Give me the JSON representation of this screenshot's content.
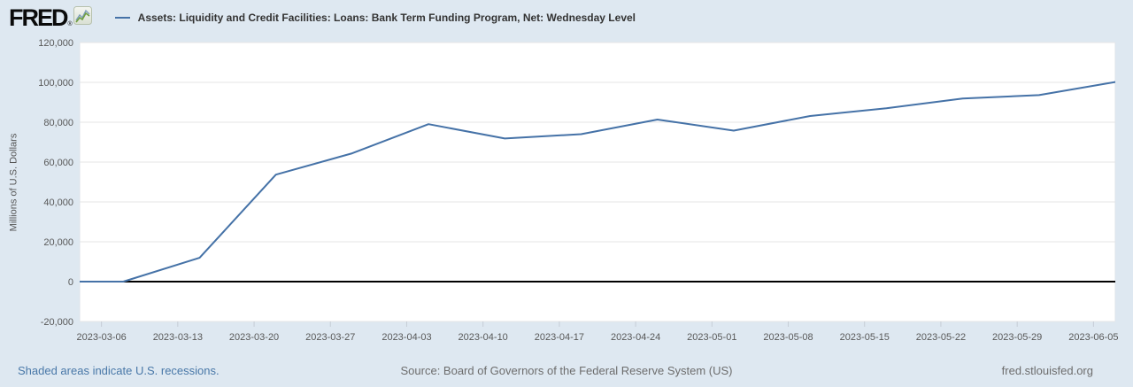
{
  "header": {
    "logo_text": "FRED",
    "logo_reg": "®",
    "logo_icon": "fred-sparkline-icon"
  },
  "chart_data": {
    "type": "line",
    "title": "Assets: Liquidity and Credit Facilities: Loans: Bank Term Funding Program, Net: Wednesday Level",
    "xlabel": "",
    "ylabel": "Millions of U.S. Dollars",
    "ylim": [
      -20000,
      120000
    ],
    "grid": "horizontal",
    "legend_position": "top-left",
    "line_color": "#4572a7",
    "zero_line_color": "#000000",
    "gridline_color": "#e6e6e6",
    "plot_background": "#ffffff",
    "page_background": "#dee8f1",
    "x_domain": [
      "2023-03-04",
      "2023-06-07"
    ],
    "x_ticks": [
      "2023-03-06",
      "2023-03-13",
      "2023-03-20",
      "2023-03-27",
      "2023-04-03",
      "2023-04-10",
      "2023-04-17",
      "2023-04-24",
      "2023-05-01",
      "2023-05-08",
      "2023-05-15",
      "2023-05-22",
      "2023-05-29",
      "2023-06-05"
    ],
    "y_ticks": [
      {
        "value": 120000,
        "label": "120,000"
      },
      {
        "value": 100000,
        "label": "100,000"
      },
      {
        "value": 80000,
        "label": "80,000"
      },
      {
        "value": 60000,
        "label": "60,000"
      },
      {
        "value": 40000,
        "label": "40,000"
      },
      {
        "value": 20000,
        "label": "20,000"
      },
      {
        "value": 0,
        "label": "0"
      },
      {
        "value": -20000,
        "label": "-20,000"
      }
    ],
    "points": [
      {
        "date": "2023-03-01",
        "value": 0
      },
      {
        "date": "2023-03-08",
        "value": 0
      },
      {
        "date": "2023-03-15",
        "value": 11943
      },
      {
        "date": "2023-03-22",
        "value": 53669
      },
      {
        "date": "2023-03-29",
        "value": 64403
      },
      {
        "date": "2023-04-05",
        "value": 79021
      },
      {
        "date": "2023-04-12",
        "value": 71837
      },
      {
        "date": "2023-04-19",
        "value": 73982
      },
      {
        "date": "2023-04-26",
        "value": 81327
      },
      {
        "date": "2023-05-03",
        "value": 75778
      },
      {
        "date": "2023-05-10",
        "value": 83101
      },
      {
        "date": "2023-05-17",
        "value": 87006
      },
      {
        "date": "2023-05-24",
        "value": 91907
      },
      {
        "date": "2023-05-31",
        "value": 93615
      },
      {
        "date": "2023-06-07",
        "value": 100161
      }
    ]
  },
  "footer": {
    "recession_note": "Shaded areas indicate U.S. recessions.",
    "source": "Source: Board of Governors of the Federal Reserve System (US)",
    "site": "fred.stlouisfed.org"
  }
}
